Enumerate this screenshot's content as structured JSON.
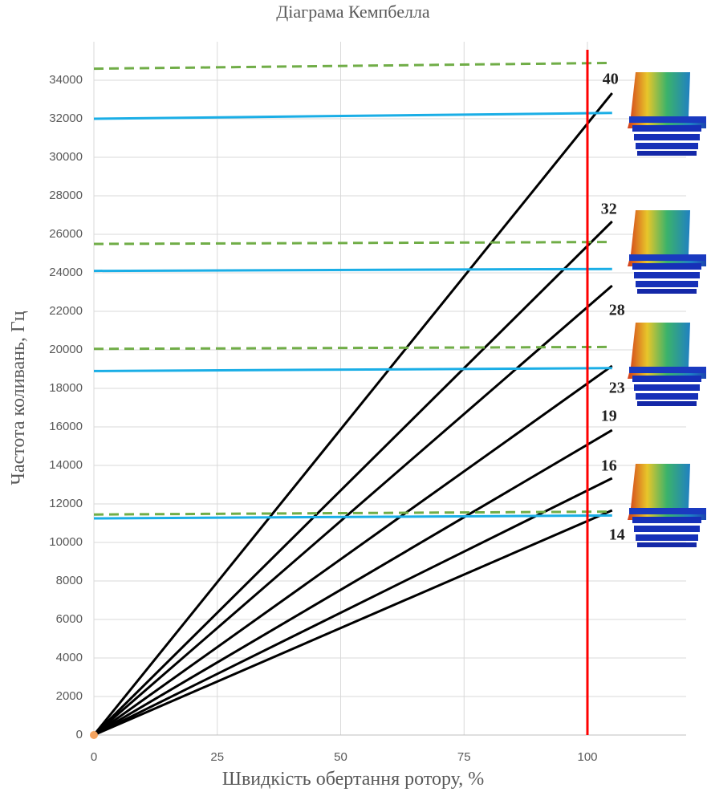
{
  "chart_data": {
    "type": "line",
    "title": "Діаграма Кемпбелла",
    "xlabel": "Швидкість обертання ротору, %",
    "ylabel": "Частота коливань, Гц",
    "xlim": [
      0,
      120
    ],
    "ylim": [
      0,
      36000
    ],
    "xticks": [
      0,
      25,
      50,
      75,
      100
    ],
    "yticks": [
      0,
      2000,
      4000,
      6000,
      8000,
      10000,
      12000,
      14000,
      16000,
      18000,
      20000,
      22000,
      24000,
      26000,
      28000,
      30000,
      32000,
      34000
    ],
    "grid": true,
    "vline": {
      "x": 100,
      "color": "#ff0000"
    },
    "series": [
      {
        "name": "40",
        "color": "#000000",
        "x": [
          0,
          105
        ],
        "values": [
          0,
          33333
        ]
      },
      {
        "name": "32",
        "color": "#000000",
        "x": [
          0,
          105
        ],
        "values": [
          0,
          26667
        ]
      },
      {
        "name": "28",
        "color": "#000000",
        "x": [
          0,
          105
        ],
        "values": [
          0,
          23333
        ]
      },
      {
        "name": "23",
        "color": "#000000",
        "x": [
          0,
          105
        ],
        "values": [
          0,
          19167
        ]
      },
      {
        "name": "19",
        "color": "#000000",
        "x": [
          0,
          105
        ],
        "values": [
          0,
          15833
        ]
      },
      {
        "name": "16",
        "color": "#000000",
        "x": [
          0,
          105
        ],
        "values": [
          0,
          13333
        ]
      },
      {
        "name": "14",
        "color": "#000000",
        "x": [
          0,
          105
        ],
        "values": [
          0,
          11667
        ]
      },
      {
        "color": "#1aaee6",
        "x": [
          0,
          105
        ],
        "values": [
          32000,
          32300
        ]
      },
      {
        "color": "#1aaee6",
        "x": [
          0,
          105
        ],
        "values": [
          24100,
          24200
        ]
      },
      {
        "color": "#1aaee6",
        "x": [
          0,
          105
        ],
        "values": [
          18900,
          19050
        ]
      },
      {
        "color": "#1aaee6",
        "x": [
          0,
          105
        ],
        "values": [
          11250,
          11400
        ]
      },
      {
        "color": "#70ad47",
        "dashed": true,
        "x": [
          0,
          105
        ],
        "values": [
          34600,
          34900
        ]
      },
      {
        "color": "#70ad47",
        "dashed": true,
        "x": [
          0,
          105
        ],
        "values": [
          25500,
          25600
        ]
      },
      {
        "color": "#70ad47",
        "dashed": true,
        "x": [
          0,
          105
        ],
        "values": [
          20050,
          20150
        ]
      },
      {
        "color": "#70ad47",
        "dashed": true,
        "x": [
          0,
          105
        ],
        "values": [
          11450,
          11600
        ]
      }
    ]
  }
}
